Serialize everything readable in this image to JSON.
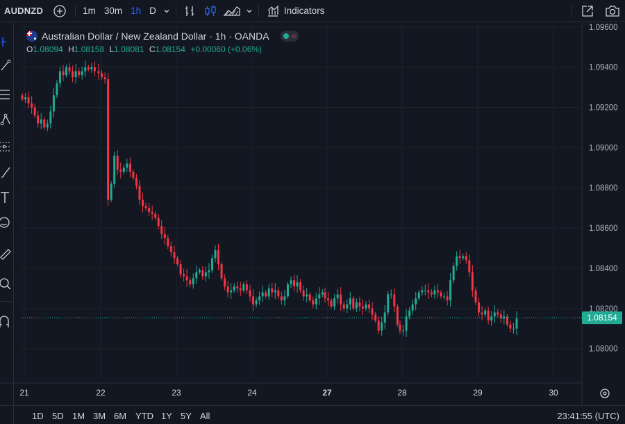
{
  "toolbar": {
    "symbol": "AUDNZD",
    "intervals": [
      "1m",
      "30m",
      "1h",
      "D"
    ],
    "active_interval": "1h",
    "indicators_label": "Indicators"
  },
  "legend": {
    "title": "Australian Dollar / New Zealand Dollar · 1h · OANDA",
    "open_key": "O",
    "open": "1.08094",
    "high_key": "H",
    "high": "1.08158",
    "low_key": "L",
    "low": "1.08081",
    "close_key": "C",
    "close": "1.08154",
    "change": "+0.00060 (+0.06%)"
  },
  "ranges": [
    "1D",
    "5D",
    "1M",
    "3M",
    "6M",
    "YTD",
    "1Y",
    "5Y",
    "All"
  ],
  "clock": "23:41:55 (UTC)",
  "colors": {
    "up": "#22ab94",
    "down": "#f23645",
    "accent": "#2962ff",
    "background": "#131722"
  },
  "chart_data": {
    "type": "candlestick",
    "y_ticks": [
      "1.09600",
      "1.09400",
      "1.09200",
      "1.09000",
      "1.08800",
      "1.08600",
      "1.08400",
      "1.08200",
      "1.08000"
    ],
    "y_tick_values": [
      1.096,
      1.094,
      1.092,
      1.09,
      1.088,
      1.086,
      1.084,
      1.082,
      1.08
    ],
    "ylim": [
      1.0785,
      1.0962
    ],
    "x_ticks": [
      "21",
      "22",
      "23",
      "24",
      "27",
      "28",
      "29",
      "30"
    ],
    "x_tick_bold": [
      false,
      false,
      false,
      false,
      true,
      false,
      false,
      false
    ],
    "last_price": "1.08154",
    "last_price_value": 1.08154,
    "candles_per_day": 24,
    "closes": [
      1.0924,
      1.0925,
      1.0922,
      1.092,
      1.0916,
      1.0912,
      1.0914,
      1.091,
      1.0912,
      1.0918,
      1.0926,
      1.0932,
      1.0938,
      1.0936,
      1.094,
      1.0938,
      1.0935,
      1.0938,
      1.0936,
      1.0938,
      1.094,
      1.0939,
      1.094,
      1.0938,
      1.0937,
      1.0935,
      1.0934,
      1.0874,
      1.0882,
      1.0896,
      1.0889,
      1.0888,
      1.089,
      1.0892,
      1.0888,
      1.0885,
      1.0881,
      1.0874,
      1.0871,
      1.087,
      1.0868,
      1.0867,
      1.0865,
      1.0861,
      1.0857,
      1.0855,
      1.0851,
      1.0848,
      1.0845,
      1.0842,
      1.0837,
      1.0836,
      1.0834,
      1.0832,
      1.0835,
      1.0838,
      1.0839,
      1.0836,
      1.0838,
      1.0839,
      1.0845,
      1.0849,
      1.0842,
      1.0835,
      1.0831,
      1.0828,
      1.0829,
      1.0831,
      1.083,
      1.0829,
      1.0832,
      1.0829,
      1.0826,
      1.0822,
      1.0824,
      1.0826,
      1.0828,
      1.0826,
      1.083,
      1.0828,
      1.0829,
      1.0826,
      1.0824,
      1.0826,
      1.0832,
      1.0834,
      1.0831,
      1.0833,
      1.0829,
      1.0826,
      1.0827,
      1.0824,
      1.0822,
      1.0825,
      1.0827,
      1.0828,
      1.0825,
      1.0824,
      1.0821,
      1.0825,
      1.0827,
      1.0822,
      1.082,
      1.0822,
      1.0825,
      1.082,
      1.0823,
      1.0821,
      1.082,
      1.0822,
      1.082,
      1.0817,
      1.0814,
      1.0809,
      1.0813,
      1.0818,
      1.0827,
      1.0827,
      1.0821,
      1.0812,
      1.0809,
      1.0809,
      1.0816,
      1.0819,
      1.0822,
      1.0825,
      1.0828,
      1.0829,
      1.0829,
      1.0828,
      1.0827,
      1.0829,
      1.0828,
      1.0826,
      1.0826,
      1.0824,
      1.0834,
      1.0841,
      1.0846,
      1.0845,
      1.0846,
      1.0844,
      1.0838,
      1.0829,
      1.0823,
      1.0818,
      1.0817,
      1.0819,
      1.0814,
      1.0816,
      1.0818,
      1.0817,
      1.0815,
      1.0816,
      1.0812,
      1.081,
      1.081,
      1.0815
    ]
  }
}
